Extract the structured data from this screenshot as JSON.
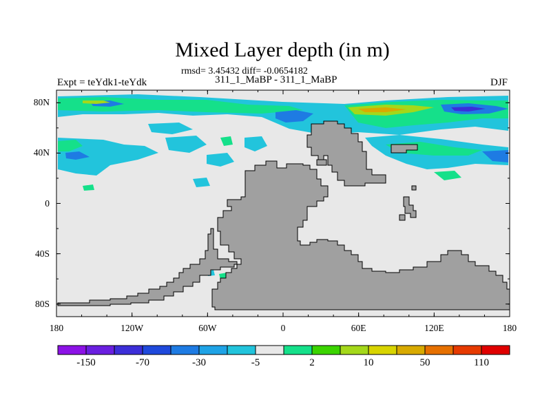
{
  "title": "Mixed Layer depth (in m)",
  "stats_line": "rmsd= 3.45432 diff= -0.0654182",
  "runs_line": "311_1_MaBP - 311_1_MaBP",
  "left_label": "Expt = teYdk1-teYdk",
  "right_label": "DJF",
  "map": {
    "projection": "cylindrical equidistant",
    "lon_range": [
      -180,
      180
    ],
    "lat_range": [
      -90,
      90
    ],
    "land_color": "#a0a0a0",
    "ocean_zero_color": "#e8e8e8",
    "lat_ticks": [
      {
        "label": "80N",
        "lat": 80
      },
      {
        "label": "40N",
        "lat": 40
      },
      {
        "label": "0",
        "lat": 0
      },
      {
        "label": "40S",
        "lat": -40
      },
      {
        "label": "80S",
        "lat": -80
      }
    ],
    "lon_ticks": [
      {
        "label": "180",
        "lon": -180
      },
      {
        "label": "120W",
        "lon": -120
      },
      {
        "label": "60W",
        "lon": -60
      },
      {
        "label": "0",
        "lon": 0
      },
      {
        "label": "60E",
        "lon": 60
      },
      {
        "label": "120E",
        "lon": 120
      },
      {
        "label": "180",
        "lon": 180
      }
    ]
  },
  "colorbar": {
    "colors": [
      "#8c12e6",
      "#6a1fe0",
      "#3c2ed8",
      "#1f49dc",
      "#1e7be3",
      "#1fa3e6",
      "#22c4dc",
      "#e8e8e8",
      "#15e08a",
      "#3bd400",
      "#a4d81a",
      "#d8d400",
      "#d8aa00",
      "#e67000",
      "#e63a00",
      "#e00000"
    ],
    "labels": [
      "-150",
      "-70",
      "-30",
      "-5",
      "2",
      "10",
      "50",
      "110"
    ]
  }
}
